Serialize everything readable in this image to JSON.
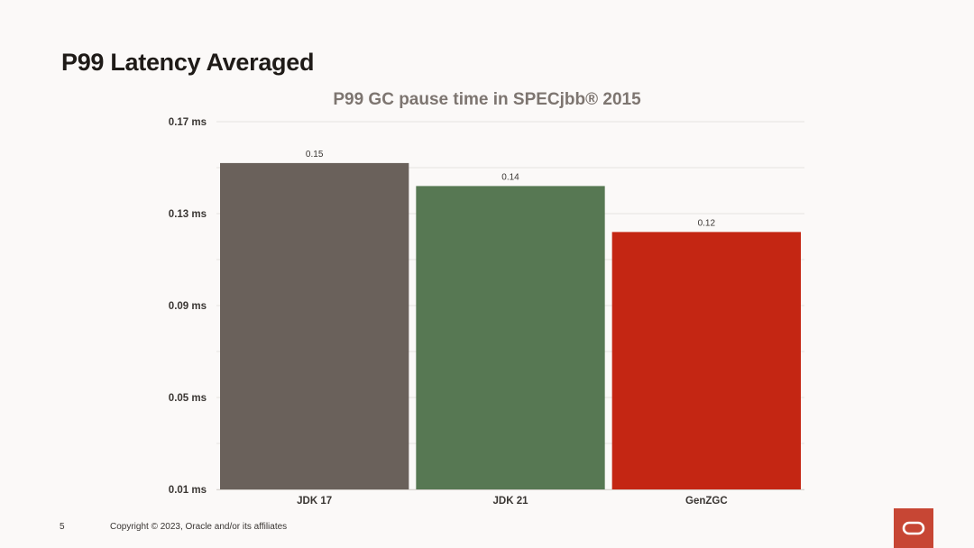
{
  "slide": {
    "title": "P99 Latency Averaged",
    "page_number": "5",
    "copyright": "Copyright © 2023, Oracle and/or its affiliates"
  },
  "logo": {
    "icon": "oracle-logo-icon",
    "color": "#c74634"
  },
  "chart_data": {
    "type": "bar",
    "title": "P99 GC pause time in SPECjbb® 2015",
    "xlabel": "",
    "ylabel": "",
    "categories": [
      "JDK 17",
      "JDK 21",
      "GenZGC"
    ],
    "values": [
      0.152,
      0.142,
      0.122
    ],
    "data_labels": [
      "0.15",
      "0.14",
      "0.12"
    ],
    "colors": [
      "#6a615b",
      "#577853",
      "#c42613"
    ],
    "ylim": [
      0.01,
      0.17
    ],
    "yticks": [
      0.01,
      0.05,
      0.09,
      0.13,
      0.17
    ],
    "ytick_labels": [
      "0.01 ms",
      "0.05 ms",
      "0.09 ms",
      "0.13 ms",
      "0.17 ms"
    ],
    "grid": true
  }
}
